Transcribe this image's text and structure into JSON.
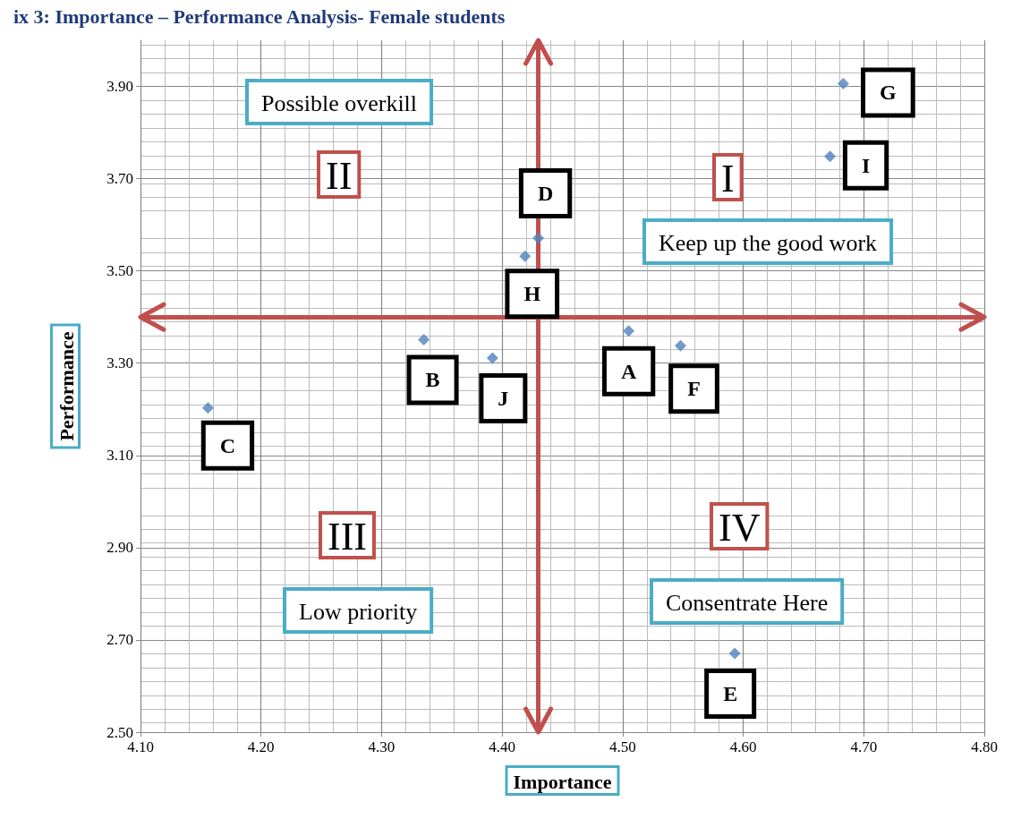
{
  "chart_data": {
    "type": "scatter",
    "title": "ix 3: Importance – Performance Analysis- Female students",
    "xlabel": "Importance",
    "ylabel": "Performance",
    "x": [
      4.505,
      4.335,
      4.156,
      4.43,
      4.593,
      4.548,
      4.683,
      4.419,
      4.672,
      4.392
    ],
    "series": [
      {
        "color": "#4f81bd",
        "values": [
          3.37,
          3.351,
          3.203,
          3.571,
          2.671,
          3.338,
          3.906,
          3.532,
          3.748,
          3.311
        ]
      }
    ],
    "marker": "diamond",
    "grid": true,
    "xlim": [
      4.1,
      4.8
    ],
    "xticks": [
      {
        "value": 4.1,
        "label": "4.10"
      },
      {
        "value": 4.2,
        "label": "4.20"
      },
      {
        "value": 4.3,
        "label": "4.30"
      },
      {
        "value": 4.4,
        "label": "4.40"
      },
      {
        "value": 4.5,
        "label": "4.50"
      },
      {
        "value": 4.6,
        "label": "4.60"
      },
      {
        "value": 4.7,
        "label": "4.70"
      },
      {
        "value": 4.8,
        "label": "4.80"
      }
    ],
    "ylim": [
      2.5,
      4.0
    ],
    "yticks": [
      {
        "value": 2.5,
        "label": "2.50"
      },
      {
        "value": 2.7,
        "label": "2.70"
      },
      {
        "value": 2.9,
        "label": "2.90"
      },
      {
        "value": 3.1,
        "label": "3.10"
      },
      {
        "value": 3.3,
        "label": "3.30"
      },
      {
        "value": 3.5,
        "label": "3.50"
      },
      {
        "value": 3.7,
        "label": "3.70"
      },
      {
        "value": 3.9,
        "label": "3.90"
      }
    ],
    "ref_lines": [
      {
        "axis": "x",
        "value": 4.43,
        "color": "#c0504d"
      },
      {
        "axis": "y",
        "value": 3.4,
        "color": "#c0504d"
      }
    ],
    "annotations": [
      "II",
      "Possible overkill",
      "I",
      "Keep up the good work",
      "III",
      "Low priority",
      "IV",
      "Consentrate Here",
      {
        "text": "A",
        "x": 4.505,
        "y": 3.37
      },
      {
        "text": "B",
        "x": 4.335,
        "y": 3.351
      },
      {
        "text": "C",
        "x": 4.156,
        "y": 3.203
      },
      {
        "text": "D",
        "x": 4.43,
        "y": 3.571
      },
      {
        "text": "E",
        "x": 4.593,
        "y": 2.671
      },
      {
        "text": "F",
        "x": 4.548,
        "y": 3.338
      },
      {
        "text": "G",
        "x": 4.683,
        "y": 3.906
      },
      {
        "text": "H",
        "x": 4.419,
        "y": 3.532
      },
      {
        "text": "I",
        "x": 4.672,
        "y": 3.748
      },
      {
        "text": "J",
        "x": 4.392,
        "y": 3.311
      }
    ]
  }
}
